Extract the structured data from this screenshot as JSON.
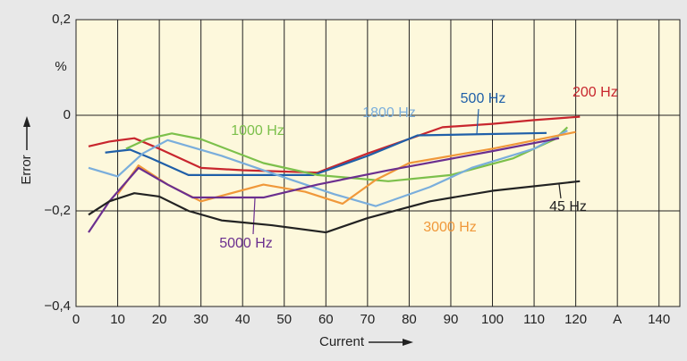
{
  "chart_data": {
    "type": "line",
    "y_label": "Error",
    "y_unit": "%",
    "x_label": "Current",
    "xlim": [
      0,
      145
    ],
    "ylim": [
      -0.4,
      0.2
    ],
    "xticks": [
      0,
      10,
      20,
      30,
      40,
      50,
      60,
      70,
      80,
      90,
      100,
      110,
      120,
      {
        "value": 130,
        "label": "A"
      },
      140
    ],
    "yticks": [
      {
        "value": 0.2,
        "label": "0,2"
      },
      0,
      {
        "value": -0.2,
        "label": "−0,2"
      },
      {
        "value": -0.4,
        "label": "−0,4"
      }
    ],
    "grid": true,
    "series": [
      {
        "name": "200 Hz",
        "color": "#c8262e",
        "x": [
          3,
          8,
          14,
          20,
          30,
          40,
          58,
          70,
          88,
          100,
          110,
          121
        ],
        "values": [
          -0.065,
          -0.055,
          -0.048,
          -0.07,
          -0.11,
          -0.115,
          -0.12,
          -0.08,
          -0.025,
          -0.018,
          -0.01,
          -0.003
        ]
      },
      {
        "name": "500 Hz",
        "color": "#1f5fa8",
        "x": [
          7,
          13,
          18,
          27,
          40,
          57,
          70,
          82,
          95,
          113
        ],
        "values": [
          -0.078,
          -0.072,
          -0.09,
          -0.125,
          -0.125,
          -0.125,
          -0.085,
          -0.042,
          -0.04,
          -0.037
        ]
      },
      {
        "name": "1000 Hz",
        "color": "#7cc04b",
        "x": [
          12,
          17,
          23,
          30,
          45,
          58,
          75,
          90,
          105,
          115,
          118
        ],
        "values": [
          -0.07,
          -0.05,
          -0.038,
          -0.05,
          -0.1,
          -0.125,
          -0.138,
          -0.125,
          -0.09,
          -0.05,
          -0.025
        ]
      },
      {
        "name": "1800 Hz",
        "color": "#7aaedc",
        "x": [
          3,
          10,
          16,
          22,
          35,
          50,
          62,
          72,
          85,
          95,
          110,
          118
        ],
        "values": [
          -0.11,
          -0.128,
          -0.08,
          -0.052,
          -0.085,
          -0.13,
          -0.165,
          -0.19,
          -0.15,
          -0.11,
          -0.07,
          -0.032
        ]
      },
      {
        "name": "3000 Hz",
        "color": "#f0983a",
        "x": [
          10,
          15,
          22,
          30,
          45,
          55,
          64,
          72,
          80,
          100,
          120
        ],
        "values": [
          -0.165,
          -0.105,
          -0.145,
          -0.18,
          -0.145,
          -0.16,
          -0.185,
          -0.135,
          -0.1,
          -0.07,
          -0.035
        ]
      },
      {
        "name": "5000 Hz",
        "color": "#6b2f8f",
        "x": [
          3,
          8,
          15,
          22,
          28,
          45,
          58,
          75,
          100,
          116
        ],
        "values": [
          -0.245,
          -0.18,
          -0.11,
          -0.145,
          -0.172,
          -0.172,
          -0.145,
          -0.115,
          -0.075,
          -0.048
        ]
      },
      {
        "name": "45 Hz",
        "color": "#222222",
        "x": [
          3,
          8,
          14,
          20,
          27,
          35,
          47,
          60,
          70,
          85,
          100,
          121
        ],
        "values": [
          -0.208,
          -0.18,
          -0.163,
          -0.17,
          -0.2,
          -0.22,
          -0.23,
          -0.245,
          -0.215,
          -0.18,
          -0.158,
          -0.138
        ]
      }
    ]
  }
}
